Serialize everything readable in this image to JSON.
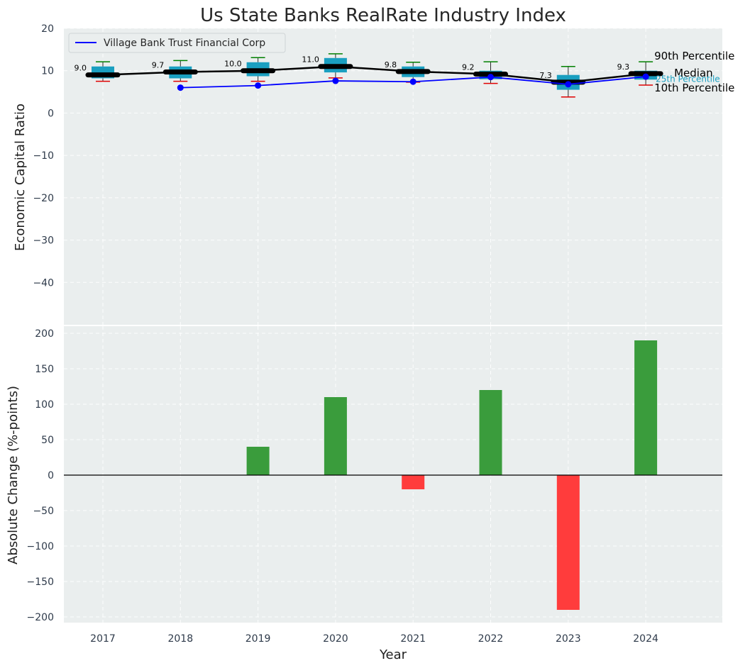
{
  "chart_data": [
    {
      "type": "box-line",
      "title": "Us State Banks RealRate Industry Index",
      "ylabel": "Economic Capital Ratio",
      "ylim": [
        -50,
        20
      ],
      "yticks": [
        20,
        10,
        0,
        -10,
        -20,
        -30,
        -40
      ],
      "categories": [
        "2017",
        "2018",
        "2019",
        "2020",
        "2021",
        "2022",
        "2023",
        "2024"
      ],
      "median": [
        9.0,
        9.7,
        10.0,
        11.0,
        9.8,
        9.2,
        7.3,
        9.3
      ],
      "median_labels": [
        "9.0",
        "9.7",
        "10.0",
        "11.0",
        "9.8",
        "9.2",
        "7.3",
        "9.3"
      ],
      "p10": [
        7.5,
        7.5,
        7.5,
        8.3,
        7.3,
        7.0,
        3.8,
        6.6
      ],
      "p25": [
        8.2,
        8.2,
        8.7,
        9.6,
        8.5,
        8.0,
        5.5,
        7.9
      ],
      "p75": [
        11.0,
        11.0,
        12.0,
        13.0,
        11.0,
        10.0,
        9.0,
        10.0
      ],
      "p90": [
        12.1,
        12.4,
        13.1,
        14.0,
        12.0,
        12.1,
        11.0,
        12.1
      ],
      "series": [
        {
          "name": "Village Bank Trust Financial Corp",
          "color": "#0000ff",
          "values": [
            null,
            6.0,
            6.5,
            7.6,
            7.4,
            8.5,
            6.8,
            8.6
          ]
        }
      ],
      "annotations": {
        "p90": "90th Percentile",
        "median": "Median",
        "p25": "25th Percentile",
        "p10": "10th Percentile"
      },
      "colors": {
        "box": "#1a9fc0",
        "median": "#000000",
        "p90_whisker": "#008000",
        "p10_whisker": "#e00000",
        "background": "#eaeeee"
      }
    },
    {
      "type": "bar",
      "ylabel": "Absolute Change (%-points)",
      "xlabel": "Year",
      "ylim": [
        -208,
        210
      ],
      "yticks": [
        200,
        150,
        100,
        50,
        0,
        -50,
        -100,
        -150,
        -200
      ],
      "categories": [
        "2017",
        "2018",
        "2019",
        "2020",
        "2021",
        "2022",
        "2023",
        "2024"
      ],
      "values": [
        0,
        0,
        40,
        110,
        -20,
        120,
        -190,
        190
      ],
      "colors": {
        "positive": "#3a9c3c",
        "negative": "#ff3c3c"
      }
    }
  ]
}
